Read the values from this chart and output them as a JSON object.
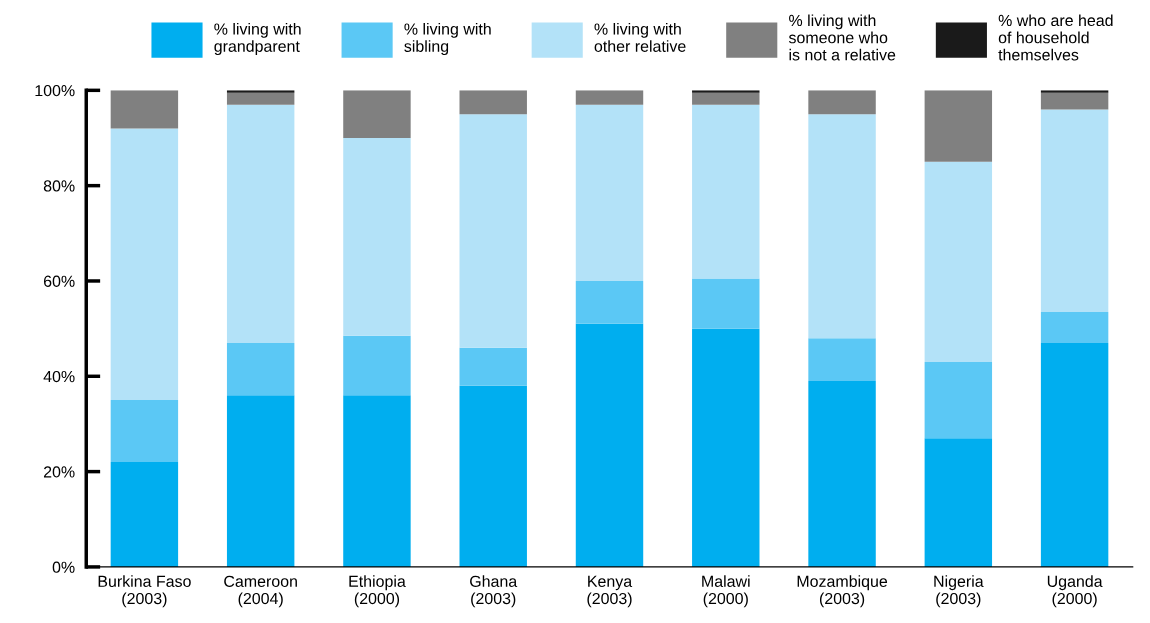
{
  "chart_data": {
    "type": "bar",
    "stacked": true,
    "categories": [
      "Burkina Faso\n(2003)",
      "Cameroon\n(2004)",
      "Ethiopia\n(2000)",
      "Ghana\n(2003)",
      "Kenya\n(2003)",
      "Malawi\n(2000)",
      "Mozambique\n(2003)",
      "Nigeria\n(2003)",
      "Uganda\n(2000)"
    ],
    "series": [
      {
        "name": "% living with\ngrandparent",
        "color": "#00aeef",
        "values": [
          22,
          36,
          36,
          38,
          51,
          50,
          39,
          27,
          47
        ]
      },
      {
        "name": "% living with\nsibling",
        "color": "#5bc8f5",
        "values": [
          13,
          11,
          12.5,
          8,
          9,
          10.5,
          9,
          16,
          6.5
        ]
      },
      {
        "name": "% living with\nother relative",
        "color": "#b3e2f8",
        "values": [
          57,
          50,
          41.5,
          49,
          37,
          36.5,
          47,
          42,
          42.5
        ]
      },
      {
        "name": "% living with\nsomeone who\nis not a relative",
        "color": "#808080",
        "values": [
          8,
          2.5,
          10,
          5,
          3,
          2.5,
          5,
          15,
          3.5
        ]
      },
      {
        "name": "% who are head\nof household\nthemselves",
        "color": "#1a1a1a",
        "values": [
          0,
          0.5,
          0,
          0,
          0,
          0.5,
          0,
          0,
          0.5
        ]
      }
    ],
    "ylim": [
      0,
      100
    ],
    "yticks": [
      {
        "value": 0,
        "label": "0%"
      },
      {
        "value": 20,
        "label": "20%"
      },
      {
        "value": 40,
        "label": "40%"
      },
      {
        "value": 60,
        "label": "60%"
      },
      {
        "value": 80,
        "label": "80%"
      },
      {
        "value": 100,
        "label": "100%"
      }
    ],
    "grid": false,
    "legend": "top"
  }
}
